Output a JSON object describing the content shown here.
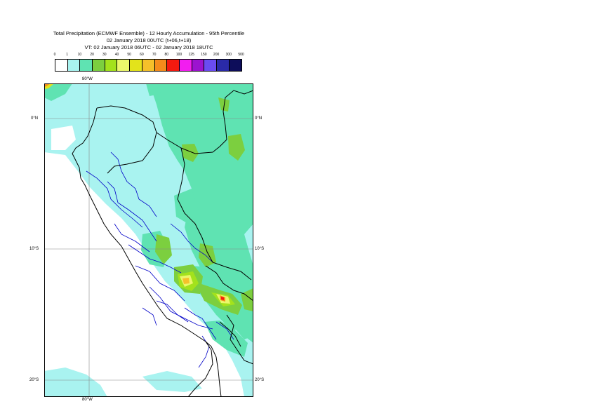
{
  "title": {
    "line1": "Total Precipitation (ECMWF Ensemble) - 12 Hourly Accumulation - 95th Percentile",
    "line2": "02 January 2018 00UTC (t+06,t+18)",
    "line3": "VT: 02 January 2018 06UTC - 02 January 2018 18UTC"
  },
  "legend": {
    "labels": [
      "0",
      "1",
      "10",
      "20",
      "30",
      "40",
      "50",
      "60",
      "70",
      "80",
      "100",
      "125",
      "150",
      "200",
      "300",
      "500"
    ],
    "colors": [
      "#ffffff",
      "#a9f3f0",
      "#5fe3b2",
      "#7ccf3f",
      "#a3e21c",
      "#eaf76b",
      "#e3e31b",
      "#f5c02a",
      "#f58b1b",
      "#f41a10",
      "#f21df0",
      "#9c13cf",
      "#6a4cf2",
      "#2a2aa8",
      "#0d0d5a"
    ]
  },
  "axes": {
    "top_lon": "80°W",
    "bottom_lon": "80°W",
    "lat_labels": [
      "0°N",
      "10°S",
      "20°S"
    ]
  },
  "colors": {
    "land_outline": "#000000",
    "admin_boundaries": "#0000c8",
    "grid": "#888888"
  }
}
